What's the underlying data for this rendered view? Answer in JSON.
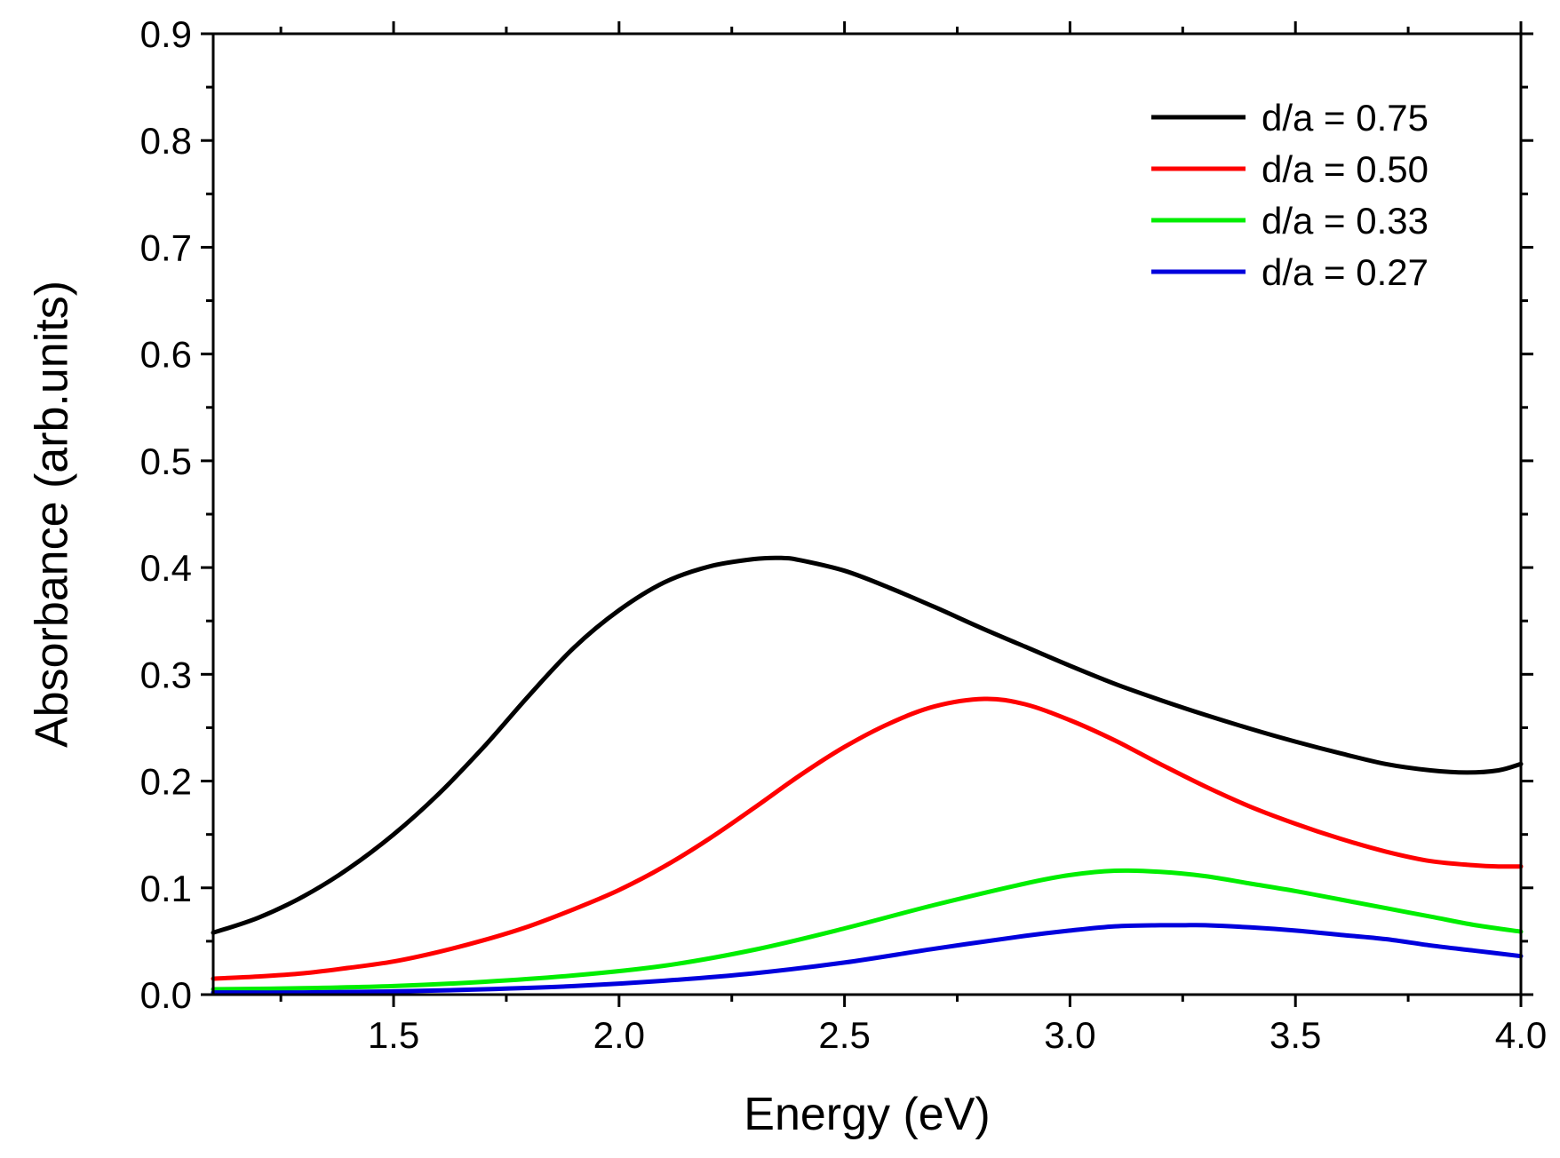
{
  "chart_data": {
    "type": "line",
    "xlabel": "Energy (eV)",
    "ylabel": "Absorbance (arb.units)",
    "xlim": [
      1.1,
      4.0
    ],
    "ylim": [
      0.0,
      0.9
    ],
    "xticks": [
      "1.5",
      "2.0",
      "2.5",
      "3.0",
      "3.5",
      "4.0"
    ],
    "yticks": [
      "0.0",
      "0.1",
      "0.2",
      "0.3",
      "0.4",
      "0.5",
      "0.6",
      "0.7",
      "0.8",
      "0.9"
    ],
    "grid": false,
    "legend_position": "top-right",
    "series": [
      {
        "name": "d/a = 0.75",
        "color": "#000000",
        "x": [
          1.1,
          1.2,
          1.3,
          1.4,
          1.5,
          1.6,
          1.7,
          1.8,
          1.9,
          2.0,
          2.1,
          2.2,
          2.3,
          2.36,
          2.4,
          2.5,
          2.6,
          2.7,
          2.8,
          2.9,
          3.0,
          3.1,
          3.2,
          3.3,
          3.4,
          3.5,
          3.6,
          3.7,
          3.8,
          3.88,
          3.95,
          4.0
        ],
        "y": [
          0.058,
          0.072,
          0.092,
          0.118,
          0.15,
          0.188,
          0.232,
          0.28,
          0.325,
          0.36,
          0.386,
          0.401,
          0.408,
          0.409,
          0.407,
          0.397,
          0.381,
          0.363,
          0.344,
          0.326,
          0.308,
          0.291,
          0.276,
          0.262,
          0.249,
          0.237,
          0.226,
          0.216,
          0.21,
          0.208,
          0.21,
          0.216
        ]
      },
      {
        "name": "d/a = 0.50",
        "color": "#ff0000",
        "x": [
          1.1,
          1.2,
          1.3,
          1.4,
          1.5,
          1.6,
          1.7,
          1.8,
          1.9,
          2.0,
          2.1,
          2.2,
          2.3,
          2.4,
          2.5,
          2.6,
          2.7,
          2.81,
          2.9,
          3.0,
          3.1,
          3.2,
          3.3,
          3.4,
          3.5,
          3.6,
          3.7,
          3.8,
          3.9,
          3.95,
          4.0
        ],
        "y": [
          0.015,
          0.017,
          0.02,
          0.025,
          0.031,
          0.04,
          0.051,
          0.064,
          0.08,
          0.098,
          0.12,
          0.146,
          0.175,
          0.205,
          0.232,
          0.254,
          0.27,
          0.277,
          0.272,
          0.257,
          0.238,
          0.216,
          0.195,
          0.176,
          0.16,
          0.146,
          0.134,
          0.125,
          0.121,
          0.12,
          0.12
        ]
      },
      {
        "name": "d/a = 0.33",
        "color": "#00ee00",
        "x": [
          1.1,
          1.3,
          1.5,
          1.7,
          1.9,
          2.1,
          2.3,
          2.5,
          2.7,
          2.9,
          3.0,
          3.1,
          3.2,
          3.3,
          3.4,
          3.5,
          3.6,
          3.7,
          3.8,
          3.9,
          4.0
        ],
        "y": [
          0.005,
          0.006,
          0.008,
          0.012,
          0.018,
          0.027,
          0.042,
          0.062,
          0.084,
          0.104,
          0.112,
          0.116,
          0.115,
          0.111,
          0.104,
          0.097,
          0.089,
          0.081,
          0.073,
          0.065,
          0.059
        ]
      },
      {
        "name": "d/a = 0.27",
        "color": "#0000dd",
        "x": [
          1.1,
          1.3,
          1.5,
          1.7,
          1.9,
          2.1,
          2.3,
          2.5,
          2.7,
          2.9,
          3.0,
          3.1,
          3.2,
          3.25,
          3.3,
          3.4,
          3.5,
          3.6,
          3.7,
          3.8,
          3.9,
          4.0
        ],
        "y": [
          0.002,
          0.002,
          0.003,
          0.005,
          0.008,
          0.013,
          0.02,
          0.03,
          0.043,
          0.055,
          0.06,
          0.064,
          0.065,
          0.065,
          0.065,
          0.063,
          0.06,
          0.056,
          0.052,
          0.046,
          0.041,
          0.036
        ]
      }
    ]
  }
}
